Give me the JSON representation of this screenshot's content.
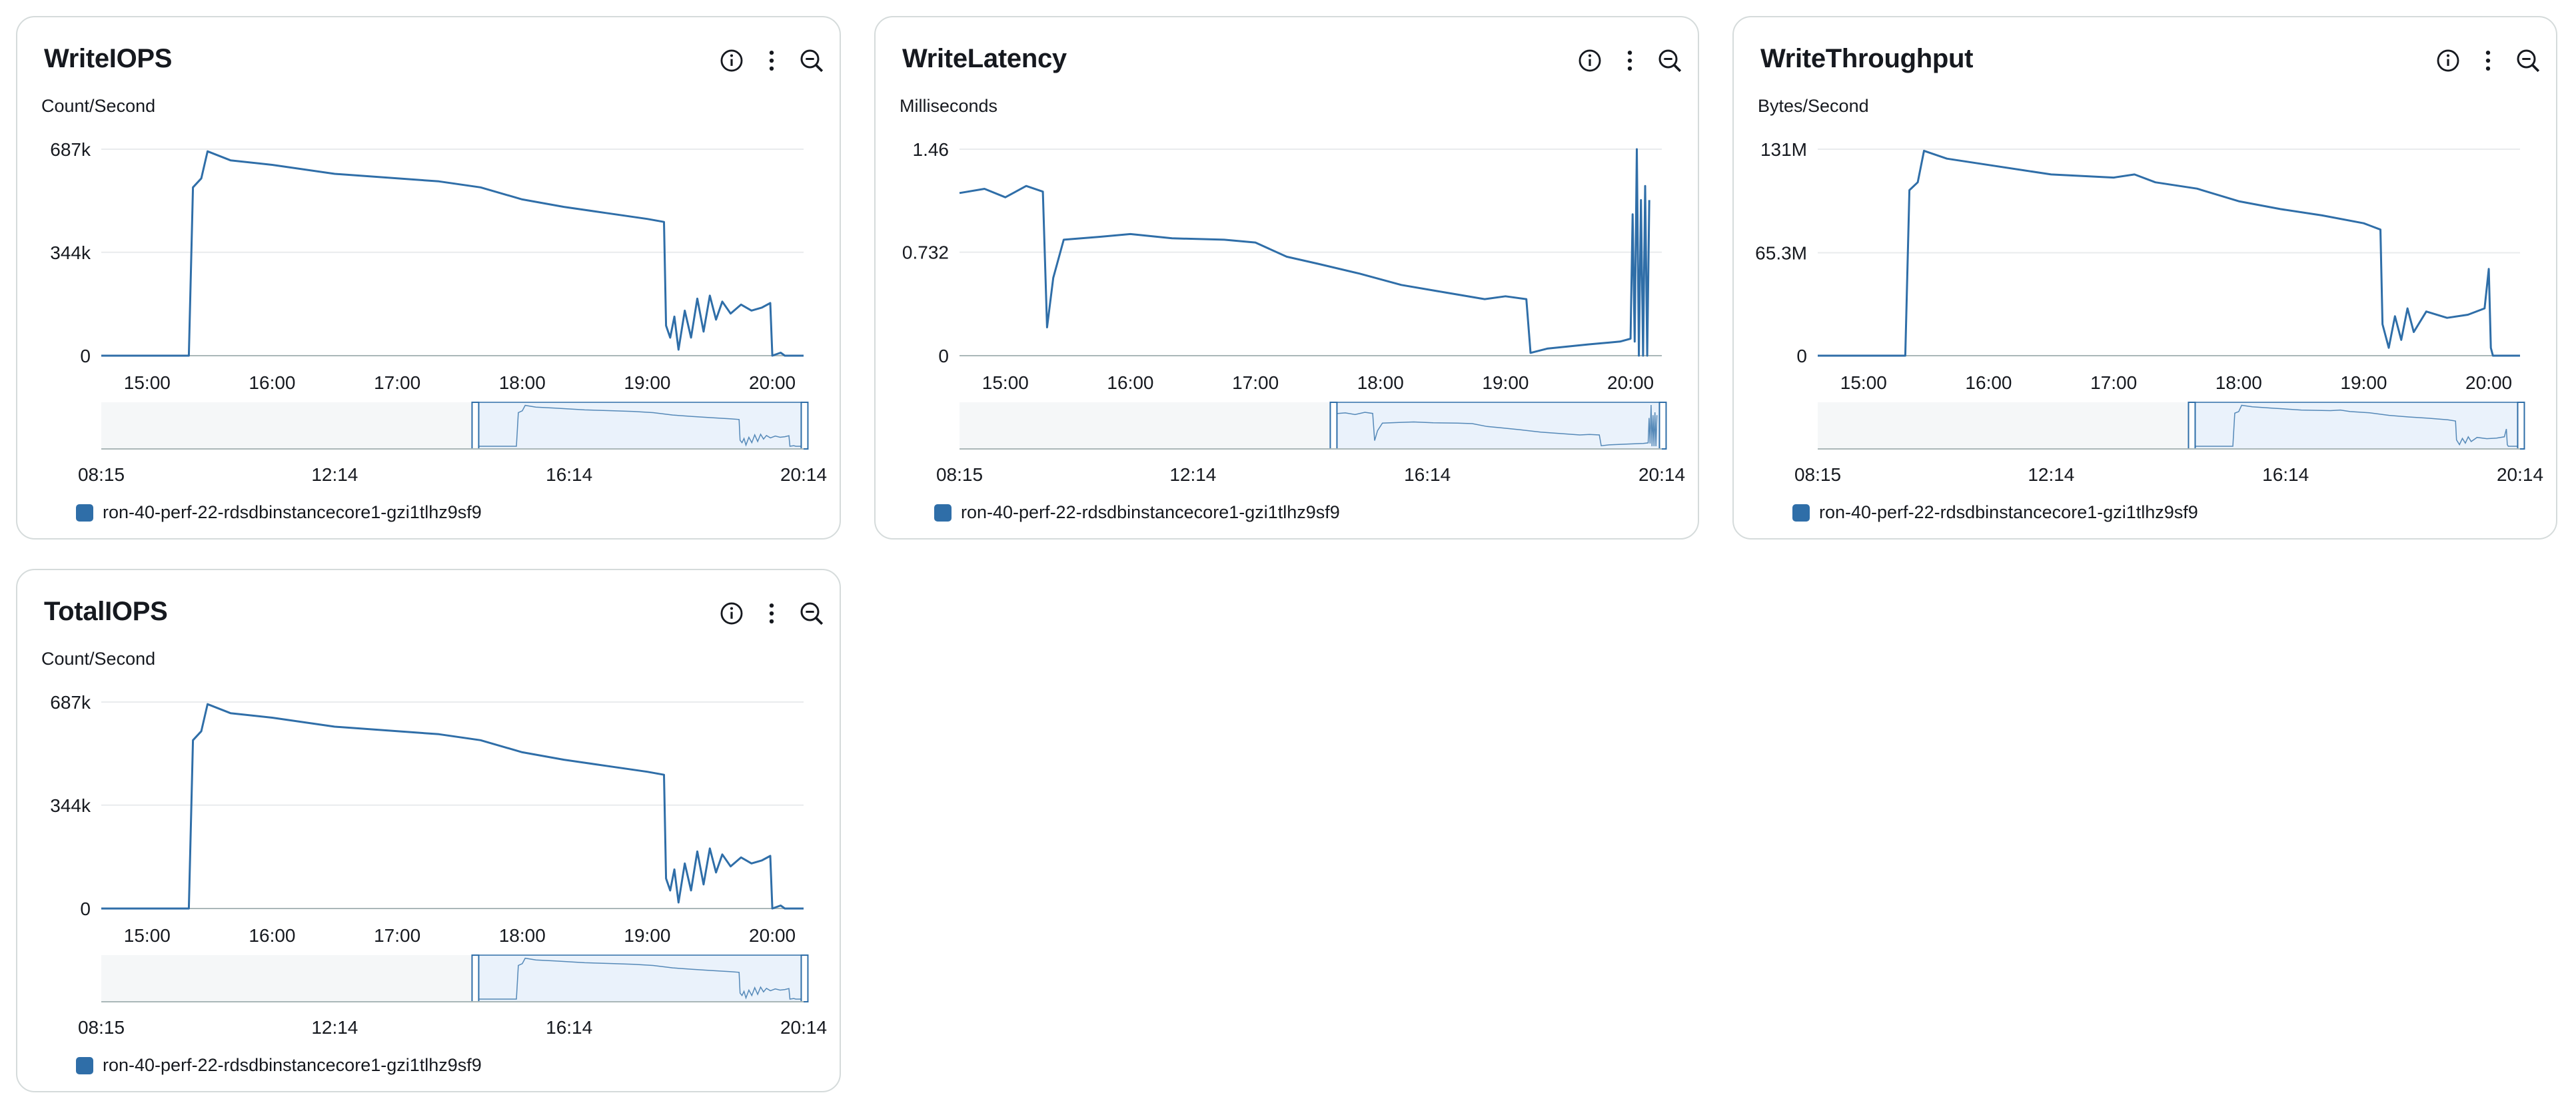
{
  "series_color": "#2f6ea8",
  "range_fill": "#eaf2fb",
  "nav_background": "#f5f7f8",
  "legend_label": "ron-40-perf-22-rdsdbinstancecore1-gzi1tlhz9sf9",
  "widgets": [
    {
      "title": "WriteIOPS",
      "unit": "Count/Second"
    },
    {
      "title": "WriteLatency",
      "unit": "Milliseconds"
    },
    {
      "title": "WriteThroughput",
      "unit": "Bytes/Second"
    },
    {
      "title": "TotalIOPS",
      "unit": "Count/Second"
    }
  ],
  "icons": [
    "info-icon",
    "more-options-icon",
    "zoom-out-icon"
  ],
  "chart_data": [
    {
      "type": "line",
      "title": "WriteIOPS",
      "ylabel": "Count/Second",
      "ylim": [
        0,
        687000
      ],
      "yticks": [
        0,
        344000,
        687000
      ],
      "ytick_labels": [
        "0",
        "344k",
        "687k"
      ],
      "xlim": [
        "14:38",
        "20:15"
      ],
      "xtick_labels": [
        "15:00",
        "16:00",
        "17:00",
        "18:00",
        "19:00",
        "20:00"
      ],
      "navigator": {
        "xlim": [
          "08:15",
          "20:14"
        ],
        "xtick_labels": [
          "08:15",
          "12:14",
          "16:14",
          "20:14"
        ],
        "selected": [
          "14:38",
          "20:15"
        ]
      },
      "series": [
        {
          "name": "ron-40-perf-22-rdsdbinstancecore1-gzi1tlhz9sf9",
          "points": [
            [
              "14:38",
              0
            ],
            [
              "15:20",
              0
            ],
            [
              "15:22",
              560000
            ],
            [
              "15:26",
              590000
            ],
            [
              "15:29",
              680000
            ],
            [
              "15:40",
              650000
            ],
            [
              "16:00",
              635000
            ],
            [
              "16:30",
              605000
            ],
            [
              "17:00",
              590000
            ],
            [
              "17:20",
              580000
            ],
            [
              "17:40",
              560000
            ],
            [
              "18:00",
              520000
            ],
            [
              "18:20",
              495000
            ],
            [
              "18:40",
              475000
            ],
            [
              "19:00",
              455000
            ],
            [
              "19:08",
              445000
            ],
            [
              "19:09",
              100000
            ],
            [
              "19:11",
              60000
            ],
            [
              "19:13",
              130000
            ],
            [
              "19:15",
              20000
            ],
            [
              "19:18",
              150000
            ],
            [
              "19:21",
              60000
            ],
            [
              "19:24",
              190000
            ],
            [
              "19:27",
              80000
            ],
            [
              "19:30",
              200000
            ],
            [
              "19:33",
              120000
            ],
            [
              "19:36",
              180000
            ],
            [
              "19:40",
              140000
            ],
            [
              "19:45",
              170000
            ],
            [
              "19:50",
              150000
            ],
            [
              "19:55",
              160000
            ],
            [
              "19:59",
              175000
            ],
            [
              "20:00",
              0
            ],
            [
              "20:04",
              10000
            ],
            [
              "20:06",
              0
            ],
            [
              "20:15",
              0
            ]
          ]
        }
      ]
    },
    {
      "type": "line",
      "title": "WriteLatency",
      "ylabel": "Milliseconds",
      "ylim": [
        0,
        1.46
      ],
      "yticks": [
        0,
        0.732,
        1.46
      ],
      "ytick_labels": [
        "0",
        "0.732",
        "1.46"
      ],
      "xlim": [
        "14:38",
        "20:15"
      ],
      "xtick_labels": [
        "15:00",
        "16:00",
        "17:00",
        "18:00",
        "19:00",
        "20:00"
      ],
      "navigator": {
        "xlim": [
          "08:15",
          "20:14"
        ],
        "xtick_labels": [
          "08:15",
          "12:14",
          "16:14",
          "20:14"
        ],
        "selected": [
          "14:38",
          "20:15"
        ]
      },
      "series": [
        {
          "name": "ron-40-perf-22-rdsdbinstancecore1-gzi1tlhz9sf9",
          "points": [
            [
              "14:38",
              1.15
            ],
            [
              "14:50",
              1.18
            ],
            [
              "15:00",
              1.12
            ],
            [
              "15:10",
              1.2
            ],
            [
              "15:18",
              1.16
            ],
            [
              "15:20",
              0.2
            ],
            [
              "15:23",
              0.55
            ],
            [
              "15:28",
              0.82
            ],
            [
              "15:45",
              0.84
            ],
            [
              "16:00",
              0.86
            ],
            [
              "16:20",
              0.83
            ],
            [
              "16:45",
              0.82
            ],
            [
              "17:00",
              0.8
            ],
            [
              "17:15",
              0.7
            ],
            [
              "17:30",
              0.65
            ],
            [
              "17:50",
              0.58
            ],
            [
              "18:10",
              0.5
            ],
            [
              "18:30",
              0.45
            ],
            [
              "18:50",
              0.4
            ],
            [
              "19:00",
              0.42
            ],
            [
              "19:10",
              0.4
            ],
            [
              "19:12",
              0.02
            ],
            [
              "19:20",
              0.05
            ],
            [
              "19:40",
              0.08
            ],
            [
              "19:55",
              0.1
            ],
            [
              "20:00",
              0.12
            ],
            [
              "20:01",
              1.0
            ],
            [
              "20:02",
              0.1
            ],
            [
              "20:03",
              1.46
            ],
            [
              "20:04",
              0.0
            ],
            [
              "20:05",
              1.1
            ],
            [
              "20:06",
              0.0
            ],
            [
              "20:07",
              1.2
            ],
            [
              "20:08",
              0.0
            ],
            [
              "20:09",
              1.1
            ]
          ]
        }
      ]
    },
    {
      "type": "line",
      "title": "WriteThroughput",
      "ylabel": "Bytes/Second",
      "ylim": [
        0,
        131000000
      ],
      "yticks": [
        0,
        65300000,
        131000000
      ],
      "ytick_labels": [
        "0",
        "65.3M",
        "131M"
      ],
      "xlim": [
        "14:38",
        "20:15"
      ],
      "xtick_labels": [
        "15:00",
        "16:00",
        "17:00",
        "18:00",
        "19:00",
        "20:00"
      ],
      "navigator": {
        "xlim": [
          "08:15",
          "20:14"
        ],
        "xtick_labels": [
          "08:15",
          "12:14",
          "16:14",
          "20:14"
        ],
        "selected": [
          "14:38",
          "20:15"
        ]
      },
      "series": [
        {
          "name": "ron-40-perf-22-rdsdbinstancecore1-gzi1tlhz9sf9",
          "points": [
            [
              "14:38",
              0
            ],
            [
              "15:20",
              0
            ],
            [
              "15:22",
              105000000
            ],
            [
              "15:26",
              110000000
            ],
            [
              "15:29",
              130000000
            ],
            [
              "15:40",
              125000000
            ],
            [
              "16:00",
              121000000
            ],
            [
              "16:30",
              115000000
            ],
            [
              "17:00",
              113000000
            ],
            [
              "17:10",
              115000000
            ],
            [
              "17:20",
              110000000
            ],
            [
              "17:40",
              106000000
            ],
            [
              "18:00",
              98000000
            ],
            [
              "18:20",
              93000000
            ],
            [
              "18:40",
              89000000
            ],
            [
              "19:00",
              84000000
            ],
            [
              "19:08",
              80000000
            ],
            [
              "19:09",
              20000000
            ],
            [
              "19:12",
              5000000
            ],
            [
              "19:15",
              25000000
            ],
            [
              "19:18",
              10000000
            ],
            [
              "19:21",
              30000000
            ],
            [
              "19:24",
              15000000
            ],
            [
              "19:30",
              28000000
            ],
            [
              "19:40",
              24000000
            ],
            [
              "19:50",
              26000000
            ],
            [
              "19:58",
              30000000
            ],
            [
              "20:00",
              55000000
            ],
            [
              "20:01",
              5000000
            ],
            [
              "20:02",
              0
            ],
            [
              "20:15",
              0
            ]
          ]
        }
      ]
    },
    {
      "type": "line",
      "title": "TotalIOPS",
      "ylabel": "Count/Second",
      "ylim": [
        0,
        687000
      ],
      "yticks": [
        0,
        344000,
        687000
      ],
      "ytick_labels": [
        "0",
        "344k",
        "687k"
      ],
      "xlim": [
        "14:38",
        "20:15"
      ],
      "xtick_labels": [
        "15:00",
        "16:00",
        "17:00",
        "18:00",
        "19:00",
        "20:00"
      ],
      "navigator": {
        "xlim": [
          "08:15",
          "20:14"
        ],
        "xtick_labels": [
          "08:15",
          "12:14",
          "16:14",
          "20:14"
        ],
        "selected": [
          "14:38",
          "20:15"
        ]
      },
      "series": [
        {
          "name": "ron-40-perf-22-rdsdbinstancecore1-gzi1tlhz9sf9",
          "points": [
            [
              "14:38",
              0
            ],
            [
              "15:20",
              0
            ],
            [
              "15:22",
              560000
            ],
            [
              "15:26",
              590000
            ],
            [
              "15:29",
              680000
            ],
            [
              "15:40",
              650000
            ],
            [
              "16:00",
              635000
            ],
            [
              "16:30",
              605000
            ],
            [
              "17:00",
              590000
            ],
            [
              "17:20",
              580000
            ],
            [
              "17:40",
              560000
            ],
            [
              "18:00",
              520000
            ],
            [
              "18:20",
              495000
            ],
            [
              "18:40",
              475000
            ],
            [
              "19:00",
              455000
            ],
            [
              "19:08",
              445000
            ],
            [
              "19:09",
              100000
            ],
            [
              "19:11",
              60000
            ],
            [
              "19:13",
              130000
            ],
            [
              "19:15",
              20000
            ],
            [
              "19:18",
              150000
            ],
            [
              "19:21",
              60000
            ],
            [
              "19:24",
              190000
            ],
            [
              "19:27",
              80000
            ],
            [
              "19:30",
              200000
            ],
            [
              "19:33",
              120000
            ],
            [
              "19:36",
              180000
            ],
            [
              "19:40",
              140000
            ],
            [
              "19:45",
              170000
            ],
            [
              "19:50",
              150000
            ],
            [
              "19:55",
              160000
            ],
            [
              "19:59",
              175000
            ],
            [
              "20:00",
              0
            ],
            [
              "20:04",
              10000
            ],
            [
              "20:06",
              0
            ],
            [
              "20:15",
              0
            ]
          ]
        }
      ]
    }
  ]
}
